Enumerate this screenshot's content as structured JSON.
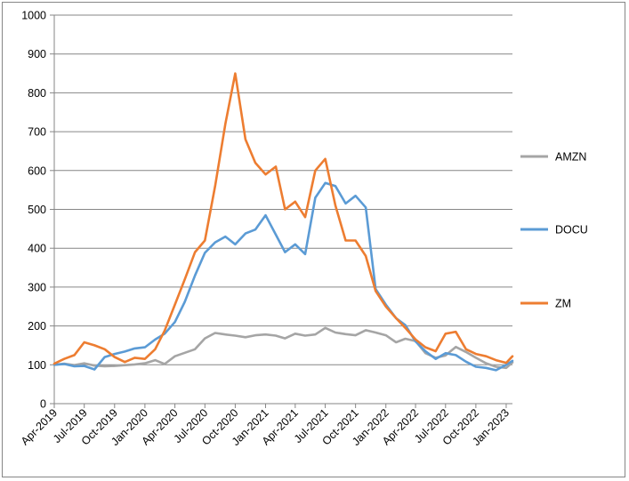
{
  "chart_data": {
    "type": "line",
    "title": "",
    "xlabel": "",
    "ylabel": "",
    "ylim": [
      0,
      1000
    ],
    "y_ticks": [
      0,
      100,
      200,
      300,
      400,
      500,
      600,
      700,
      800,
      900,
      1000
    ],
    "x_range": [
      "2019-04-01",
      "2023-01-20"
    ],
    "x_ticks": [
      {
        "date": "2019-04-01",
        "label": "Apr-2019"
      },
      {
        "date": "2019-07-01",
        "label": "Jul-2019"
      },
      {
        "date": "2019-10-01",
        "label": "Oct-2019"
      },
      {
        "date": "2020-01-01",
        "label": "Jan-2020"
      },
      {
        "date": "2020-04-01",
        "label": "Apr-2020"
      },
      {
        "date": "2020-07-01",
        "label": "Jul-2020"
      },
      {
        "date": "2020-10-01",
        "label": "Oct-2020"
      },
      {
        "date": "2021-01-01",
        "label": "Jan-2021"
      },
      {
        "date": "2021-04-01",
        "label": "Apr-2021"
      },
      {
        "date": "2021-07-01",
        "label": "Jul-2021"
      },
      {
        "date": "2021-10-01",
        "label": "Oct-2021"
      },
      {
        "date": "2022-01-01",
        "label": "Jan-2022"
      },
      {
        "date": "2022-04-01",
        "label": "Apr-2022"
      },
      {
        "date": "2022-07-01",
        "label": "Jul-2022"
      },
      {
        "date": "2022-10-01",
        "label": "Oct-2022"
      },
      {
        "date": "2023-01-01",
        "label": "Jan-2023"
      }
    ],
    "grid": true,
    "legend_position": "right",
    "series": [
      {
        "name": "AMZN",
        "color": "#a5a5a5",
        "points": [
          [
            "2019-04-01",
            100
          ],
          [
            "2019-05-01",
            103
          ],
          [
            "2019-06-01",
            99
          ],
          [
            "2019-07-01",
            104
          ],
          [
            "2019-08-01",
            98
          ],
          [
            "2019-09-01",
            96
          ],
          [
            "2019-10-01",
            97
          ],
          [
            "2019-11-01",
            99
          ],
          [
            "2019-12-01",
            101
          ],
          [
            "2020-01-01",
            104
          ],
          [
            "2020-02-01",
            112
          ],
          [
            "2020-03-01",
            102
          ],
          [
            "2020-04-01",
            122
          ],
          [
            "2020-05-01",
            131
          ],
          [
            "2020-06-01",
            140
          ],
          [
            "2020-07-01",
            168
          ],
          [
            "2020-08-01",
            182
          ],
          [
            "2020-09-01",
            178
          ],
          [
            "2020-10-01",
            175
          ],
          [
            "2020-11-01",
            171
          ],
          [
            "2020-12-01",
            176
          ],
          [
            "2021-01-01",
            178
          ],
          [
            "2021-02-01",
            175
          ],
          [
            "2021-03-01",
            168
          ],
          [
            "2021-04-01",
            180
          ],
          [
            "2021-05-01",
            175
          ],
          [
            "2021-06-01",
            178
          ],
          [
            "2021-07-01",
            195
          ],
          [
            "2021-08-01",
            183
          ],
          [
            "2021-09-01",
            179
          ],
          [
            "2021-10-01",
            176
          ],
          [
            "2021-11-01",
            189
          ],
          [
            "2021-12-01",
            183
          ],
          [
            "2022-01-01",
            176
          ],
          [
            "2022-02-01",
            158
          ],
          [
            "2022-03-01",
            167
          ],
          [
            "2022-04-01",
            161
          ],
          [
            "2022-05-01",
            130
          ],
          [
            "2022-06-01",
            118
          ],
          [
            "2022-07-01",
            124
          ],
          [
            "2022-08-01",
            146
          ],
          [
            "2022-09-01",
            133
          ],
          [
            "2022-10-01",
            118
          ],
          [
            "2022-11-01",
            104
          ],
          [
            "2022-12-01",
            95
          ],
          [
            "2023-01-01",
            92
          ],
          [
            "2023-01-20",
            106
          ]
        ]
      },
      {
        "name": "DOCU",
        "color": "#5b9bd5",
        "points": [
          [
            "2019-04-01",
            100
          ],
          [
            "2019-05-01",
            102
          ],
          [
            "2019-06-01",
            96
          ],
          [
            "2019-07-01",
            97
          ],
          [
            "2019-08-01",
            88
          ],
          [
            "2019-09-01",
            120
          ],
          [
            "2019-10-01",
            128
          ],
          [
            "2019-11-01",
            134
          ],
          [
            "2019-12-01",
            142
          ],
          [
            "2020-01-01",
            145
          ],
          [
            "2020-02-01",
            165
          ],
          [
            "2020-03-01",
            180
          ],
          [
            "2020-04-01",
            210
          ],
          [
            "2020-05-01",
            262
          ],
          [
            "2020-06-01",
            330
          ],
          [
            "2020-07-01",
            388
          ],
          [
            "2020-08-01",
            415
          ],
          [
            "2020-09-01",
            430
          ],
          [
            "2020-10-01",
            410
          ],
          [
            "2020-11-01",
            438
          ],
          [
            "2020-12-01",
            448
          ],
          [
            "2021-01-01",
            485
          ],
          [
            "2021-02-01",
            435
          ],
          [
            "2021-03-01",
            390
          ],
          [
            "2021-04-01",
            410
          ],
          [
            "2021-05-01",
            385
          ],
          [
            "2021-06-01",
            530
          ],
          [
            "2021-07-01",
            568
          ],
          [
            "2021-08-01",
            560
          ],
          [
            "2021-09-01",
            515
          ],
          [
            "2021-10-01",
            535
          ],
          [
            "2021-11-01",
            505
          ],
          [
            "2021-12-01",
            295
          ],
          [
            "2022-01-01",
            255
          ],
          [
            "2022-02-01",
            220
          ],
          [
            "2022-03-01",
            202
          ],
          [
            "2022-04-01",
            160
          ],
          [
            "2022-05-01",
            135
          ],
          [
            "2022-06-01",
            115
          ],
          [
            "2022-07-01",
            130
          ],
          [
            "2022-08-01",
            125
          ],
          [
            "2022-09-01",
            108
          ],
          [
            "2022-10-01",
            95
          ],
          [
            "2022-11-01",
            92
          ],
          [
            "2022-12-01",
            86
          ],
          [
            "2023-01-01",
            100
          ],
          [
            "2023-01-20",
            110
          ]
        ]
      },
      {
        "name": "ZM",
        "color": "#ed7d31",
        "points": [
          [
            "2019-04-01",
            103
          ],
          [
            "2019-05-01",
            115
          ],
          [
            "2019-06-01",
            125
          ],
          [
            "2019-07-01",
            158
          ],
          [
            "2019-08-01",
            150
          ],
          [
            "2019-09-01",
            140
          ],
          [
            "2019-10-01",
            120
          ],
          [
            "2019-11-01",
            107
          ],
          [
            "2019-12-01",
            118
          ],
          [
            "2020-01-01",
            115
          ],
          [
            "2020-02-01",
            140
          ],
          [
            "2020-03-01",
            188
          ],
          [
            "2020-04-01",
            255
          ],
          [
            "2020-05-01",
            320
          ],
          [
            "2020-06-01",
            390
          ],
          [
            "2020-07-01",
            420
          ],
          [
            "2020-08-01",
            560
          ],
          [
            "2020-09-01",
            720
          ],
          [
            "2020-10-01",
            850
          ],
          [
            "2020-11-01",
            680
          ],
          [
            "2020-12-01",
            620
          ],
          [
            "2021-01-01",
            590
          ],
          [
            "2021-02-01",
            610
          ],
          [
            "2021-03-01",
            500
          ],
          [
            "2021-04-01",
            520
          ],
          [
            "2021-05-01",
            480
          ],
          [
            "2021-06-01",
            600
          ],
          [
            "2021-07-01",
            630
          ],
          [
            "2021-08-01",
            510
          ],
          [
            "2021-09-01",
            420
          ],
          [
            "2021-10-01",
            420
          ],
          [
            "2021-11-01",
            380
          ],
          [
            "2021-12-01",
            290
          ],
          [
            "2022-01-01",
            250
          ],
          [
            "2022-02-01",
            220
          ],
          [
            "2022-03-01",
            195
          ],
          [
            "2022-04-01",
            165
          ],
          [
            "2022-05-01",
            145
          ],
          [
            "2022-06-01",
            135
          ],
          [
            "2022-07-01",
            180
          ],
          [
            "2022-08-01",
            185
          ],
          [
            "2022-09-01",
            140
          ],
          [
            "2022-10-01",
            128
          ],
          [
            "2022-11-01",
            122
          ],
          [
            "2022-12-01",
            112
          ],
          [
            "2023-01-01",
            105
          ],
          [
            "2023-01-20",
            122
          ]
        ]
      }
    ]
  }
}
